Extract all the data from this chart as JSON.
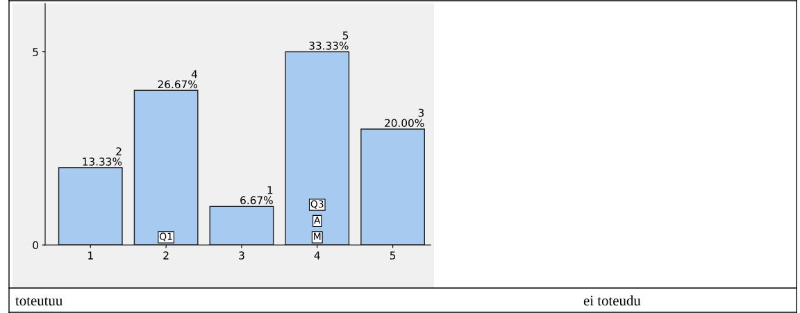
{
  "chart_data": {
    "type": "bar",
    "categories": [
      "1",
      "2",
      "3",
      "4",
      "5"
    ],
    "values": [
      2,
      4,
      1,
      5,
      3
    ],
    "color": "#a6caf0",
    "value_labels": [
      "2\n13.33%",
      "4\n26.67%",
      "1\n6.67%",
      "5\n33.33%",
      "3\n20.00%"
    ],
    "ylim": [
      0,
      6.25
    ],
    "yticks": [
      0,
      5
    ],
    "grid": false,
    "annotations": [
      {
        "text": "Q1",
        "x": "2"
      },
      {
        "text": "M",
        "x": "4"
      },
      {
        "text": "A",
        "x": "4"
      },
      {
        "text": "Q3",
        "x": "4"
      },
      "toteutuu",
      "ei toteudu"
    ]
  }
}
